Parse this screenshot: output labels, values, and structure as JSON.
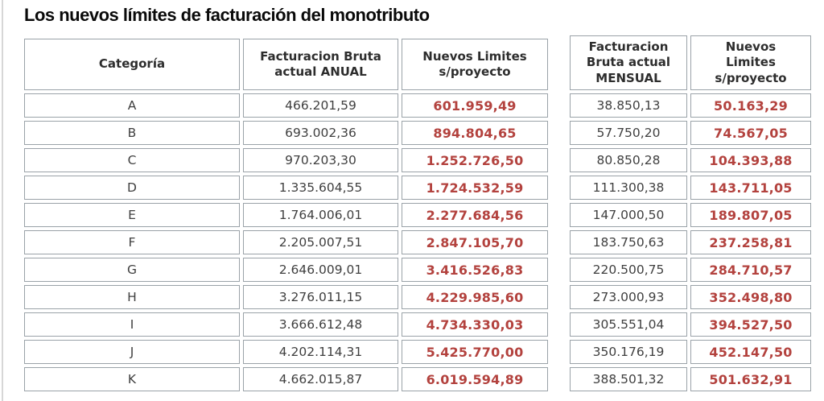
{
  "title": "Los nuevos límites de facturación del monotributo",
  "colors": {
    "title_text": "#0a0a0a",
    "cell_border": "#9aa2a8",
    "body_text": "#3f3f3f",
    "header_text": "#2d2d2d",
    "new_limit_red": "#b3423e",
    "page_background": "#ffffff",
    "edge_line": "#d7d7d7"
  },
  "chart_data": {
    "type": "table",
    "title": "Los nuevos límites de facturación del monotributo",
    "layout": "two side-by-side tables sharing category rows A-K; 'new limit' columns rendered bold red",
    "tables": [
      {
        "id": "annual",
        "headers": [
          "Categoría",
          "Facturacion Bruta\nactual ANUAL",
          "Nuevos Limites\ns/proyecto"
        ],
        "rows": [
          [
            "A",
            "466.201,59",
            "601.959,49"
          ],
          [
            "B",
            "693.002,36",
            "894.804,65"
          ],
          [
            "C",
            "970.203,30",
            "1.252.726,50"
          ],
          [
            "D",
            "1.335.604,55",
            "1.724.532,59"
          ],
          [
            "E",
            "1.764.006,01",
            "2.277.684,56"
          ],
          [
            "F",
            "2.205.007,51",
            "2.847.105,70"
          ],
          [
            "G",
            "2.646.009,01",
            "3.416.526,83"
          ],
          [
            "H",
            "3.276.011,15",
            "4.229.985,60"
          ],
          [
            "I",
            "3.666.612,48",
            "4.734.330,03"
          ],
          [
            "J",
            "4.202.114,31",
            "5.425.770,00"
          ],
          [
            "K",
            "4.662.015,87",
            "6.019.594,89"
          ]
        ]
      },
      {
        "id": "monthly",
        "headers": [
          "Facturacion\nBruta actual\nMENSUAL",
          "Nuevos\nLimites\ns/proyecto"
        ],
        "rows": [
          [
            "38.850,13",
            "50.163,29"
          ],
          [
            "57.750,20",
            "74.567,05"
          ],
          [
            "80.850,28",
            "104.393,88"
          ],
          [
            "111.300,38",
            "143.711,05"
          ],
          [
            "147.000,50",
            "189.807,05"
          ],
          [
            "183.750,63",
            "237.258,81"
          ],
          [
            "220.500,75",
            "284.710,57"
          ],
          [
            "273.000,93",
            "352.498,80"
          ],
          [
            "305.551,04",
            "394.527,50"
          ],
          [
            "350.176,19",
            "452.147,50"
          ],
          [
            "388.501,32",
            "501.632,91"
          ]
        ]
      }
    ]
  }
}
